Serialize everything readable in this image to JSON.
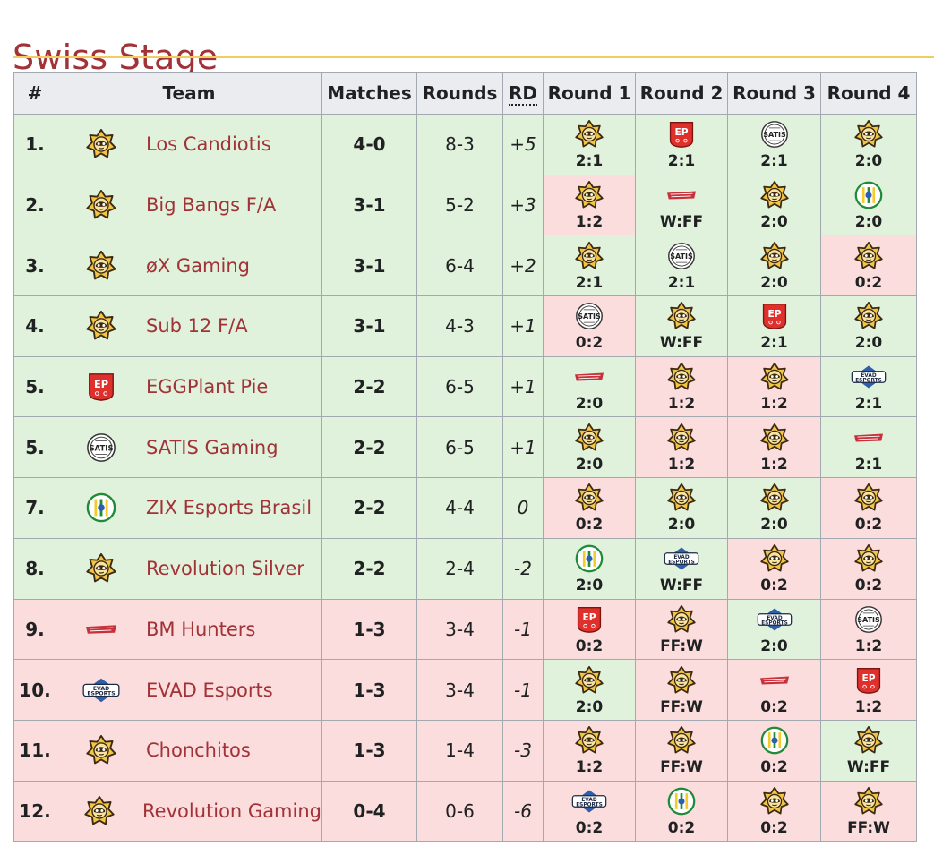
{
  "page_title": "Swiss Stage",
  "table": {
    "headers": {
      "pos": "#",
      "team": "Team",
      "matches": "Matches",
      "rounds": "Rounds",
      "rd": "RD",
      "r1": "Round 1",
      "r2": "Round 2",
      "r3": "Round 3",
      "r4": "Round 4"
    },
    "colors": {
      "advance": "#e0f2db",
      "eliminated": "#fbdddd",
      "link": "#a13237",
      "header_bg": "#eaecf0"
    },
    "rows": [
      {
        "pos": "1.",
        "logo": "star-icon",
        "team": "Los Candiotis",
        "matches": "4-0",
        "rounds": "8-3",
        "rd": "+5",
        "status": "adv",
        "games": [
          {
            "logo": "star-icon",
            "score": "2:1",
            "res": "win"
          },
          {
            "logo": "egg-shield-icon",
            "score": "2:1",
            "res": "win"
          },
          {
            "logo": "satis-icon",
            "score": "2:1",
            "res": "win"
          },
          {
            "logo": "star-icon",
            "score": "2:0",
            "res": "win"
          }
        ]
      },
      {
        "pos": "2.",
        "logo": "star-icon",
        "team": "Big Bangs F/A",
        "matches": "3-1",
        "rounds": "5-2",
        "rd": "+3",
        "status": "adv",
        "games": [
          {
            "logo": "star-icon",
            "score": "1:2",
            "res": "loss"
          },
          {
            "logo": "bm-hunters-icon",
            "score": "W:FF",
            "res": "win"
          },
          {
            "logo": "star-icon",
            "score": "2:0",
            "res": "win"
          },
          {
            "logo": "zix-icon",
            "score": "2:0",
            "res": "win"
          }
        ]
      },
      {
        "pos": "3.",
        "logo": "star-icon",
        "team": "øX Gaming",
        "matches": "3-1",
        "rounds": "6-4",
        "rd": "+2",
        "status": "adv",
        "games": [
          {
            "logo": "star-icon",
            "score": "2:1",
            "res": "win"
          },
          {
            "logo": "satis-icon",
            "score": "2:1",
            "res": "win"
          },
          {
            "logo": "star-icon",
            "score": "2:0",
            "res": "win"
          },
          {
            "logo": "star-icon",
            "score": "0:2",
            "res": "loss"
          }
        ]
      },
      {
        "pos": "4.",
        "logo": "star-icon",
        "team": "Sub 12 F/A",
        "matches": "3-1",
        "rounds": "4-3",
        "rd": "+1",
        "status": "adv",
        "games": [
          {
            "logo": "satis-icon",
            "score": "0:2",
            "res": "loss"
          },
          {
            "logo": "star-icon",
            "score": "W:FF",
            "res": "win"
          },
          {
            "logo": "egg-shield-icon",
            "score": "2:1",
            "res": "win"
          },
          {
            "logo": "star-icon",
            "score": "2:0",
            "res": "win"
          }
        ]
      },
      {
        "pos": "5.",
        "logo": "egg-shield-icon",
        "team": "EGGPlant Pie",
        "matches": "2-2",
        "rounds": "6-5",
        "rd": "+1",
        "status": "adv",
        "games": [
          {
            "logo": "bm-hunters-icon",
            "score": "2:0",
            "res": "win"
          },
          {
            "logo": "star-icon",
            "score": "1:2",
            "res": "loss"
          },
          {
            "logo": "star-icon",
            "score": "1:2",
            "res": "loss"
          },
          {
            "logo": "evad-icon",
            "score": "2:1",
            "res": "win"
          }
        ]
      },
      {
        "pos": "5.",
        "logo": "satis-icon",
        "team": "SATIS Gaming",
        "matches": "2-2",
        "rounds": "6-5",
        "rd": "+1",
        "status": "adv",
        "games": [
          {
            "logo": "star-icon",
            "score": "2:0",
            "res": "win"
          },
          {
            "logo": "star-icon",
            "score": "1:2",
            "res": "loss"
          },
          {
            "logo": "star-icon",
            "score": "1:2",
            "res": "loss"
          },
          {
            "logo": "bm-hunters-icon",
            "score": "2:1",
            "res": "win"
          }
        ]
      },
      {
        "pos": "7.",
        "logo": "zix-icon",
        "team": "ZIX Esports Brasil",
        "matches": "2-2",
        "rounds": "4-4",
        "rd": "0",
        "status": "adv",
        "games": [
          {
            "logo": "star-icon",
            "score": "0:2",
            "res": "loss"
          },
          {
            "logo": "star-icon",
            "score": "2:0",
            "res": "win"
          },
          {
            "logo": "star-icon",
            "score": "2:0",
            "res": "win"
          },
          {
            "logo": "star-icon",
            "score": "0:2",
            "res": "loss"
          }
        ]
      },
      {
        "pos": "8.",
        "logo": "star-icon",
        "team": "Revolution Silver",
        "matches": "2-2",
        "rounds": "2-4",
        "rd": "-2",
        "status": "adv",
        "games": [
          {
            "logo": "zix-icon",
            "score": "2:0",
            "res": "win"
          },
          {
            "logo": "evad-icon",
            "score": "W:FF",
            "res": "win"
          },
          {
            "logo": "star-icon",
            "score": "0:2",
            "res": "loss"
          },
          {
            "logo": "star-icon",
            "score": "0:2",
            "res": "loss"
          }
        ]
      },
      {
        "pos": "9.",
        "logo": "bm-hunters-icon",
        "team": "BM Hunters",
        "matches": "1-3",
        "rounds": "3-4",
        "rd": "-1",
        "status": "elim",
        "games": [
          {
            "logo": "egg-shield-icon",
            "score": "0:2",
            "res": "loss"
          },
          {
            "logo": "star-icon",
            "score": "FF:W",
            "res": "loss"
          },
          {
            "logo": "evad-icon",
            "score": "2:0",
            "res": "win"
          },
          {
            "logo": "satis-icon",
            "score": "1:2",
            "res": "loss"
          }
        ]
      },
      {
        "pos": "10.",
        "logo": "evad-icon",
        "team": "EVAD Esports",
        "matches": "1-3",
        "rounds": "3-4",
        "rd": "-1",
        "status": "elim",
        "games": [
          {
            "logo": "star-icon",
            "score": "2:0",
            "res": "win"
          },
          {
            "logo": "star-icon",
            "score": "FF:W",
            "res": "loss"
          },
          {
            "logo": "bm-hunters-icon",
            "score": "0:2",
            "res": "loss"
          },
          {
            "logo": "egg-shield-icon",
            "score": "1:2",
            "res": "loss"
          }
        ]
      },
      {
        "pos": "11.",
        "logo": "star-icon",
        "team": "Chonchitos",
        "matches": "1-3",
        "rounds": "1-4",
        "rd": "-3",
        "status": "elim",
        "games": [
          {
            "logo": "star-icon",
            "score": "1:2",
            "res": "loss"
          },
          {
            "logo": "star-icon",
            "score": "FF:W",
            "res": "loss"
          },
          {
            "logo": "zix-icon",
            "score": "0:2",
            "res": "loss"
          },
          {
            "logo": "star-icon",
            "score": "W:FF",
            "res": "win"
          }
        ]
      },
      {
        "pos": "12.",
        "logo": "star-icon",
        "team": "Revolution Gaming",
        "matches": "0-4",
        "rounds": "0-6",
        "rd": "-6",
        "status": "elim",
        "games": [
          {
            "logo": "evad-icon",
            "score": "0:2",
            "res": "loss"
          },
          {
            "logo": "zix-icon",
            "score": "0:2",
            "res": "loss"
          },
          {
            "logo": "star-icon",
            "score": "0:2",
            "res": "loss"
          },
          {
            "logo": "star-icon",
            "score": "FF:W",
            "res": "loss"
          }
        ]
      }
    ]
  }
}
